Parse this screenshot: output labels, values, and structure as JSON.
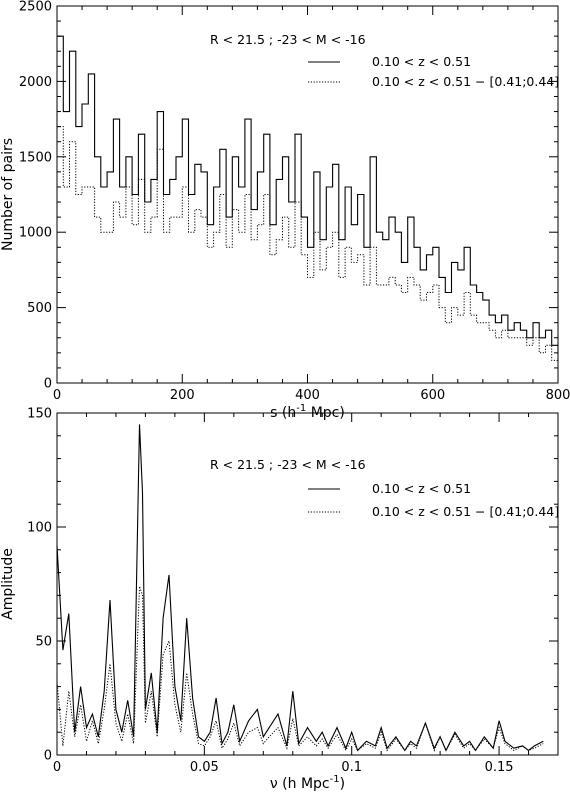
{
  "chart_data": [
    {
      "type": "line",
      "step": true,
      "annotation": "R < 21.5 ; -23 < M < -16",
      "xlabel": {
        "main": "s (h",
        "sup": "-1",
        "tail": " Mpc)"
      },
      "ylabel": "Number of pairs",
      "xlim": [
        0,
        800
      ],
      "ylim": [
        0,
        2500
      ],
      "x_ticks": [
        0,
        200,
        400,
        600,
        800
      ],
      "y_ticks": [
        0,
        500,
        1000,
        1500,
        2000,
        2500
      ],
      "series": [
        {
          "name": "0.10 < z < 0.51",
          "style": "solid",
          "x": [
            0,
            10,
            20,
            30,
            40,
            50,
            60,
            70,
            80,
            90,
            100,
            110,
            120,
            130,
            140,
            150,
            160,
            170,
            180,
            190,
            200,
            210,
            220,
            230,
            240,
            250,
            260,
            270,
            280,
            290,
            300,
            310,
            320,
            330,
            340,
            350,
            360,
            370,
            380,
            390,
            400,
            410,
            420,
            430,
            440,
            450,
            460,
            470,
            480,
            490,
            500,
            510,
            520,
            530,
            540,
            550,
            560,
            570,
            580,
            590,
            600,
            610,
            620,
            630,
            640,
            650,
            660,
            670,
            680,
            690,
            700,
            710,
            720,
            730,
            740,
            750,
            760,
            770,
            780,
            790,
            800
          ],
          "y": [
            2300,
            1800,
            2200,
            1700,
            1850,
            2050,
            1500,
            1300,
            1400,
            1750,
            1300,
            1500,
            1250,
            1650,
            1200,
            1350,
            1800,
            1250,
            1350,
            1500,
            1750,
            1250,
            1450,
            1400,
            1050,
            1300,
            1550,
            1100,
            1500,
            1300,
            1750,
            1150,
            1400,
            1650,
            1050,
            1350,
            1500,
            1200,
            1650,
            1100,
            900,
            1400,
            950,
            1300,
            1450,
            950,
            1300,
            1050,
            1250,
            900,
            1500,
            1000,
            950,
            1100,
            1000,
            800,
            1100,
            900,
            750,
            850,
            900,
            700,
            600,
            800,
            750,
            900,
            650,
            600,
            550,
            450,
            400,
            450,
            350,
            400,
            350,
            300,
            400,
            300,
            350,
            250,
            200
          ]
        },
        {
          "name": "0.10 < z < 0.51  − [0.41;0.44]",
          "style": "dotted",
          "x": [
            0,
            10,
            20,
            30,
            40,
            50,
            60,
            70,
            80,
            90,
            100,
            110,
            120,
            130,
            140,
            150,
            160,
            170,
            180,
            190,
            200,
            210,
            220,
            230,
            240,
            250,
            260,
            270,
            280,
            290,
            300,
            310,
            320,
            330,
            340,
            350,
            360,
            370,
            380,
            390,
            400,
            410,
            420,
            430,
            440,
            450,
            460,
            470,
            480,
            490,
            500,
            510,
            520,
            530,
            540,
            550,
            560,
            570,
            580,
            590,
            600,
            610,
            620,
            630,
            640,
            650,
            660,
            670,
            680,
            690,
            700,
            710,
            720,
            730,
            740,
            750,
            760,
            770,
            780,
            790,
            800
          ],
          "y": [
            1700,
            1300,
            1600,
            1250,
            1300,
            1300,
            1100,
            1000,
            1000,
            1200,
            1100,
            1300,
            1050,
            1350,
            1000,
            1100,
            1550,
            1000,
            1100,
            1100,
            1300,
            1000,
            1150,
            1100,
            900,
            1000,
            1250,
            900,
            1150,
            1000,
            1250,
            950,
            1050,
            1250,
            850,
            950,
            1100,
            900,
            1200,
            850,
            700,
            1000,
            750,
            900,
            1000,
            700,
            900,
            800,
            850,
            650,
            900,
            650,
            650,
            700,
            650,
            600,
            700,
            650,
            550,
            600,
            650,
            500,
            400,
            500,
            450,
            600,
            450,
            400,
            400,
            350,
            300,
            350,
            300,
            300,
            300,
            250,
            300,
            200,
            250,
            150,
            100
          ]
        }
      ]
    },
    {
      "type": "line",
      "annotation": "R < 21.5 ; -23 < M < -16",
      "xlabel": {
        "main": "ν (h Mpc",
        "sup": "-1",
        "tail": ")"
      },
      "ylabel": "Amplitude",
      "xlim": [
        0,
        0.17
      ],
      "ylim": [
        0,
        150
      ],
      "x_ticks": [
        0,
        0.05,
        0.1,
        0.15
      ],
      "x_tick_labels": [
        "0",
        "0.05",
        "0.1",
        "0.15"
      ],
      "y_ticks": [
        0,
        50,
        100,
        150
      ],
      "series": [
        {
          "name": "0.10 < z < 0.51",
          "style": "solid",
          "x": [
            0,
            0.002,
            0.004,
            0.006,
            0.008,
            0.01,
            0.012,
            0.014,
            0.016,
            0.018,
            0.02,
            0.022,
            0.024,
            0.026,
            0.028,
            0.029,
            0.03,
            0.032,
            0.034,
            0.036,
            0.038,
            0.04,
            0.042,
            0.044,
            0.046,
            0.048,
            0.05,
            0.052,
            0.054,
            0.056,
            0.058,
            0.06,
            0.062,
            0.065,
            0.068,
            0.07,
            0.072,
            0.075,
            0.078,
            0.08,
            0.082,
            0.085,
            0.088,
            0.09,
            0.092,
            0.095,
            0.098,
            0.1,
            0.102,
            0.105,
            0.108,
            0.11,
            0.112,
            0.115,
            0.118,
            0.12,
            0.122,
            0.125,
            0.128,
            0.13,
            0.132,
            0.135,
            0.138,
            0.14,
            0.142,
            0.145,
            0.148,
            0.15,
            0.152,
            0.155,
            0.158,
            0.16,
            0.162,
            0.165
          ],
          "y": [
            92,
            46,
            62,
            10,
            30,
            12,
            18,
            8,
            28,
            68,
            20,
            10,
            24,
            8,
            145,
            115,
            20,
            36,
            10,
            60,
            79,
            30,
            15,
            60,
            25,
            8,
            6,
            10,
            25,
            5,
            10,
            22,
            6,
            15,
            20,
            8,
            12,
            18,
            4,
            28,
            5,
            12,
            6,
            10,
            4,
            12,
            3,
            10,
            2,
            6,
            4,
            12,
            3,
            8,
            2,
            6,
            4,
            14,
            3,
            8,
            2,
            10,
            4,
            6,
            2,
            8,
            3,
            15,
            6,
            3,
            4,
            2,
            4,
            6
          ]
        },
        {
          "name": "0.10 < z < 0.51  − [0.41;0.44]",
          "style": "dotted",
          "x": [
            0,
            0.002,
            0.004,
            0.006,
            0.008,
            0.01,
            0.012,
            0.014,
            0.016,
            0.018,
            0.02,
            0.022,
            0.024,
            0.026,
            0.028,
            0.029,
            0.03,
            0.032,
            0.034,
            0.036,
            0.038,
            0.04,
            0.042,
            0.044,
            0.046,
            0.048,
            0.05,
            0.052,
            0.054,
            0.056,
            0.058,
            0.06,
            0.062,
            0.065,
            0.068,
            0.07,
            0.072,
            0.075,
            0.078,
            0.08,
            0.082,
            0.085,
            0.088,
            0.09,
            0.092,
            0.095,
            0.098,
            0.1,
            0.102,
            0.105,
            0.108,
            0.11,
            0.112,
            0.115,
            0.118,
            0.12,
            0.122,
            0.125,
            0.128,
            0.13,
            0.132,
            0.135,
            0.138,
            0.14,
            0.142,
            0.145,
            0.148,
            0.15,
            0.152,
            0.155,
            0.158,
            0.16,
            0.162,
            0.165
          ],
          "y": [
            32,
            4,
            28,
            8,
            22,
            6,
            15,
            5,
            20,
            40,
            14,
            6,
            18,
            5,
            74,
            70,
            14,
            28,
            8,
            44,
            50,
            22,
            10,
            36,
            18,
            5,
            4,
            8,
            15,
            3,
            7,
            14,
            4,
            10,
            12,
            5,
            8,
            12,
            3,
            16,
            4,
            8,
            4,
            7,
            3,
            9,
            2,
            7,
            2,
            5,
            3,
            10,
            2,
            7,
            2,
            5,
            3,
            14,
            2,
            8,
            2,
            9,
            3,
            5,
            2,
            7,
            3,
            12,
            5,
            2,
            4,
            2,
            3,
            5
          ]
        }
      ]
    }
  ]
}
